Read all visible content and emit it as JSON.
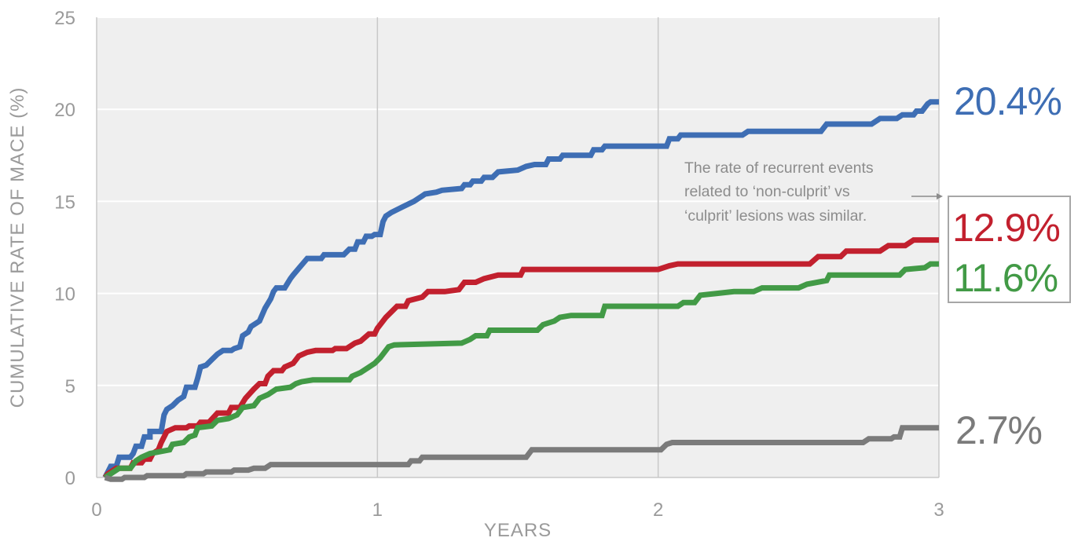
{
  "chart_data": {
    "type": "line",
    "step": true,
    "title": "",
    "xlabel": "YEARS",
    "ylabel": "CUMULATIVE RATE OF MACE (%)",
    "xlim": [
      0,
      3
    ],
    "ylim": [
      0,
      25
    ],
    "xticks": [
      "0",
      "1",
      "2",
      "3"
    ],
    "yticks": [
      "0",
      "5",
      "10",
      "15",
      "20",
      "25"
    ],
    "grid": true,
    "series": [
      {
        "name": "blue",
        "color": "#3e6eb4",
        "end_label": "20.4%",
        "points": [
          [
            0.03,
            0
          ],
          [
            0.04,
            0.3
          ],
          [
            0.05,
            0.6
          ],
          [
            0.07,
            0.6
          ],
          [
            0.08,
            1.1
          ],
          [
            0.12,
            1.1
          ],
          [
            0.13,
            1.3
          ],
          [
            0.14,
            1.7
          ],
          [
            0.16,
            1.7
          ],
          [
            0.17,
            2.2
          ],
          [
            0.19,
            2.2
          ],
          [
            0.19,
            2.5
          ],
          [
            0.23,
            2.5
          ],
          [
            0.24,
            3.4
          ],
          [
            0.25,
            3.7
          ],
          [
            0.27,
            3.9
          ],
          [
            0.29,
            4.2
          ],
          [
            0.31,
            4.4
          ],
          [
            0.32,
            4.9
          ],
          [
            0.35,
            4.9
          ],
          [
            0.36,
            5.4
          ],
          [
            0.37,
            6.0
          ],
          [
            0.39,
            6.1
          ],
          [
            0.41,
            6.4
          ],
          [
            0.43,
            6.7
          ],
          [
            0.45,
            6.9
          ],
          [
            0.48,
            6.9
          ],
          [
            0.49,
            7.0
          ],
          [
            0.51,
            7.1
          ],
          [
            0.52,
            7.7
          ],
          [
            0.54,
            7.9
          ],
          [
            0.55,
            8.2
          ],
          [
            0.58,
            8.5
          ],
          [
            0.6,
            9.2
          ],
          [
            0.62,
            9.7
          ],
          [
            0.63,
            10.1
          ],
          [
            0.64,
            10.3
          ],
          [
            0.67,
            10.3
          ],
          [
            0.69,
            10.8
          ],
          [
            0.7,
            11.0
          ],
          [
            0.75,
            11.9
          ],
          [
            0.8,
            11.9
          ],
          [
            0.81,
            12.1
          ],
          [
            0.88,
            12.1
          ],
          [
            0.9,
            12.4
          ],
          [
            0.92,
            12.4
          ],
          [
            0.93,
            12.8
          ],
          [
            0.95,
            12.8
          ],
          [
            0.96,
            13.1
          ],
          [
            0.98,
            13.1
          ],
          [
            0.99,
            13.2
          ],
          [
            1.01,
            13.2
          ],
          [
            1.02,
            13.9
          ],
          [
            1.03,
            14.2
          ],
          [
            1.05,
            14.4
          ],
          [
            1.09,
            14.7
          ],
          [
            1.13,
            15.0
          ],
          [
            1.16,
            15.3
          ],
          [
            1.17,
            15.4
          ],
          [
            1.21,
            15.5
          ],
          [
            1.23,
            15.6
          ],
          [
            1.3,
            15.7
          ],
          [
            1.31,
            15.9
          ],
          [
            1.33,
            15.9
          ],
          [
            1.34,
            16.1
          ],
          [
            1.37,
            16.1
          ],
          [
            1.38,
            16.3
          ],
          [
            1.41,
            16.3
          ],
          [
            1.43,
            16.6
          ],
          [
            1.5,
            16.7
          ],
          [
            1.53,
            16.9
          ],
          [
            1.56,
            17.0
          ],
          [
            1.6,
            17.0
          ],
          [
            1.61,
            17.3
          ],
          [
            1.65,
            17.3
          ],
          [
            1.66,
            17.5
          ],
          [
            1.76,
            17.5
          ],
          [
            1.77,
            17.8
          ],
          [
            1.8,
            17.8
          ],
          [
            1.81,
            18.0
          ],
          [
            1.98,
            18.0
          ],
          [
            2.03,
            18.0
          ],
          [
            2.04,
            18.4
          ],
          [
            2.07,
            18.4
          ],
          [
            2.08,
            18.6
          ],
          [
            2.3,
            18.6
          ],
          [
            2.32,
            18.8
          ],
          [
            2.58,
            18.8
          ],
          [
            2.6,
            19.2
          ],
          [
            2.76,
            19.2
          ],
          [
            2.79,
            19.5
          ],
          [
            2.85,
            19.5
          ],
          [
            2.87,
            19.7
          ],
          [
            2.91,
            19.7
          ],
          [
            2.92,
            19.9
          ],
          [
            2.94,
            19.9
          ],
          [
            2.96,
            20.3
          ],
          [
            2.97,
            20.4
          ],
          [
            3.0,
            20.4
          ]
        ]
      },
      {
        "name": "red",
        "color": "#c2202e",
        "end_label": "12.9%",
        "points": [
          [
            0.03,
            0
          ],
          [
            0.04,
            0.2
          ],
          [
            0.07,
            0.5
          ],
          [
            0.12,
            0.5
          ],
          [
            0.13,
            0.8
          ],
          [
            0.16,
            0.8
          ],
          [
            0.17,
            1.0
          ],
          [
            0.19,
            1.0
          ],
          [
            0.2,
            1.3
          ],
          [
            0.22,
            1.5
          ],
          [
            0.23,
            1.9
          ],
          [
            0.25,
            2.5
          ],
          [
            0.28,
            2.7
          ],
          [
            0.32,
            2.7
          ],
          [
            0.33,
            2.8
          ],
          [
            0.36,
            2.8
          ],
          [
            0.37,
            3.0
          ],
          [
            0.4,
            3.0
          ],
          [
            0.43,
            3.5
          ],
          [
            0.47,
            3.5
          ],
          [
            0.48,
            3.8
          ],
          [
            0.51,
            3.8
          ],
          [
            0.53,
            4.3
          ],
          [
            0.56,
            4.8
          ],
          [
            0.58,
            5.1
          ],
          [
            0.6,
            5.1
          ],
          [
            0.61,
            5.5
          ],
          [
            0.63,
            5.8
          ],
          [
            0.66,
            5.8
          ],
          [
            0.67,
            6.0
          ],
          [
            0.7,
            6.2
          ],
          [
            0.72,
            6.6
          ],
          [
            0.75,
            6.8
          ],
          [
            0.78,
            6.9
          ],
          [
            0.84,
            6.9
          ],
          [
            0.85,
            7.0
          ],
          [
            0.89,
            7.0
          ],
          [
            0.92,
            7.3
          ],
          [
            0.94,
            7.4
          ],
          [
            0.97,
            7.8
          ],
          [
            0.99,
            7.8
          ],
          [
            1.0,
            8.1
          ],
          [
            1.03,
            8.7
          ],
          [
            1.07,
            9.3
          ],
          [
            1.1,
            9.3
          ],
          [
            1.11,
            9.6
          ],
          [
            1.16,
            9.8
          ],
          [
            1.18,
            10.1
          ],
          [
            1.24,
            10.1
          ],
          [
            1.29,
            10.2
          ],
          [
            1.31,
            10.6
          ],
          [
            1.35,
            10.6
          ],
          [
            1.38,
            10.8
          ],
          [
            1.43,
            11.0
          ],
          [
            1.51,
            11.0
          ],
          [
            1.52,
            11.3
          ],
          [
            1.92,
            11.3
          ],
          [
            2.0,
            11.3
          ],
          [
            2.04,
            11.5
          ],
          [
            2.07,
            11.6
          ],
          [
            2.54,
            11.6
          ],
          [
            2.57,
            12.0
          ],
          [
            2.65,
            12.0
          ],
          [
            2.67,
            12.3
          ],
          [
            2.79,
            12.3
          ],
          [
            2.82,
            12.6
          ],
          [
            2.88,
            12.6
          ],
          [
            2.91,
            12.9
          ],
          [
            3.0,
            12.9
          ]
        ]
      },
      {
        "name": "green",
        "color": "#429a46",
        "end_label": "11.6%",
        "points": [
          [
            0.03,
            0
          ],
          [
            0.05,
            0.2
          ],
          [
            0.08,
            0.5
          ],
          [
            0.12,
            0.5
          ],
          [
            0.14,
            0.9
          ],
          [
            0.16,
            1.1
          ],
          [
            0.19,
            1.3
          ],
          [
            0.26,
            1.5
          ],
          [
            0.27,
            1.8
          ],
          [
            0.31,
            1.9
          ],
          [
            0.33,
            2.2
          ],
          [
            0.35,
            2.3
          ],
          [
            0.36,
            2.7
          ],
          [
            0.41,
            2.8
          ],
          [
            0.43,
            3.1
          ],
          [
            0.47,
            3.2
          ],
          [
            0.5,
            3.4
          ],
          [
            0.52,
            3.8
          ],
          [
            0.56,
            3.9
          ],
          [
            0.58,
            4.3
          ],
          [
            0.61,
            4.5
          ],
          [
            0.64,
            4.8
          ],
          [
            0.69,
            4.9
          ],
          [
            0.71,
            5.1
          ],
          [
            0.73,
            5.2
          ],
          [
            0.77,
            5.3
          ],
          [
            0.9,
            5.3
          ],
          [
            0.91,
            5.5
          ],
          [
            0.94,
            5.7
          ],
          [
            0.97,
            6.0
          ],
          [
            0.99,
            6.2
          ],
          [
            1.01,
            6.5
          ],
          [
            1.04,
            7.1
          ],
          [
            1.06,
            7.2
          ],
          [
            1.3,
            7.3
          ],
          [
            1.33,
            7.5
          ],
          [
            1.35,
            7.7
          ],
          [
            1.39,
            7.7
          ],
          [
            1.4,
            8.0
          ],
          [
            1.57,
            8.0
          ],
          [
            1.59,
            8.3
          ],
          [
            1.63,
            8.5
          ],
          [
            1.65,
            8.7
          ],
          [
            1.69,
            8.8
          ],
          [
            1.8,
            8.8
          ],
          [
            1.81,
            9.3
          ],
          [
            2.07,
            9.3
          ],
          [
            2.09,
            9.5
          ],
          [
            2.13,
            9.5
          ],
          [
            2.15,
            9.9
          ],
          [
            2.21,
            10.0
          ],
          [
            2.27,
            10.1
          ],
          [
            2.34,
            10.1
          ],
          [
            2.37,
            10.3
          ],
          [
            2.5,
            10.3
          ],
          [
            2.53,
            10.5
          ],
          [
            2.6,
            10.7
          ],
          [
            2.61,
            11.0
          ],
          [
            2.86,
            11.0
          ],
          [
            2.88,
            11.3
          ],
          [
            2.95,
            11.4
          ],
          [
            2.97,
            11.6
          ],
          [
            3.0,
            11.6
          ]
        ]
      },
      {
        "name": "gray",
        "color": "#7b7b7b",
        "end_label": "2.7%",
        "points": [
          [
            0.03,
            0
          ],
          [
            0.05,
            -0.1
          ],
          [
            0.09,
            -0.1
          ],
          [
            0.1,
            0
          ],
          [
            0.17,
            0
          ],
          [
            0.18,
            0.1
          ],
          [
            0.31,
            0.1
          ],
          [
            0.32,
            0.2
          ],
          [
            0.38,
            0.2
          ],
          [
            0.39,
            0.3
          ],
          [
            0.48,
            0.3
          ],
          [
            0.49,
            0.4
          ],
          [
            0.54,
            0.4
          ],
          [
            0.56,
            0.5
          ],
          [
            0.6,
            0.5
          ],
          [
            0.62,
            0.7
          ],
          [
            1.0,
            0.7
          ],
          [
            1.11,
            0.7
          ],
          [
            1.12,
            0.9
          ],
          [
            1.15,
            0.9
          ],
          [
            1.16,
            1.1
          ],
          [
            1.53,
            1.1
          ],
          [
            1.55,
            1.5
          ],
          [
            2.01,
            1.5
          ],
          [
            2.03,
            1.8
          ],
          [
            2.05,
            1.9
          ],
          [
            2.73,
            1.9
          ],
          [
            2.75,
            2.1
          ],
          [
            2.83,
            2.1
          ],
          [
            2.84,
            2.2
          ],
          [
            2.86,
            2.2
          ],
          [
            2.87,
            2.7
          ],
          [
            3.0,
            2.7
          ]
        ]
      }
    ],
    "annotation": {
      "lines": [
        "The rate of recurrent events",
        "related to ‘non-culprit’ vs",
        "‘culprit’ lesions was similar."
      ],
      "arrow_to": "red-green end labels"
    },
    "colors": {
      "plot_background": "#efefef",
      "grid": "#ffffff",
      "axis": "#c8c8c8",
      "text": "#9a9a9a",
      "box": "#a7a7a7"
    }
  }
}
